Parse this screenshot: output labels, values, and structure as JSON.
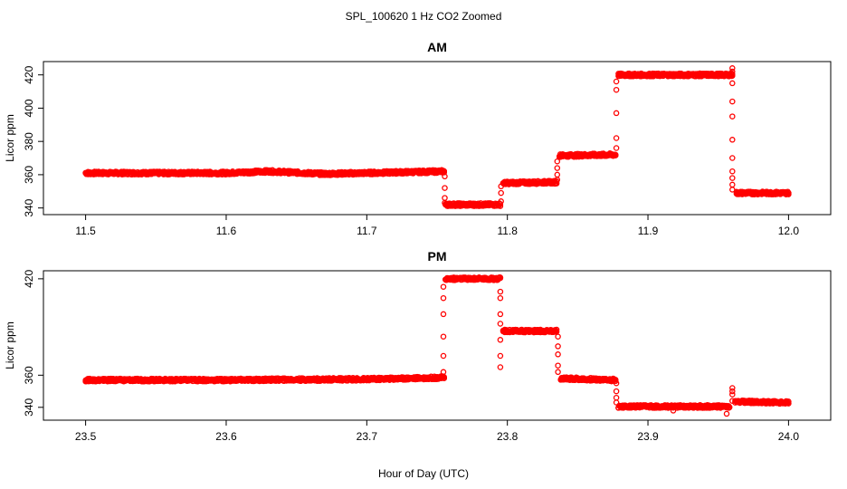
{
  "figure_title": "SPL_100620  1 Hz CO2 Zoomed",
  "xlabel": "Hour of Day (UTC)",
  "colors": {
    "points": "#ff0000",
    "axes": "#000000",
    "background": "#ffffff"
  },
  "chart_data": [
    {
      "type": "scatter",
      "title": "AM",
      "ylabel": "Licor ppm",
      "xlim": [
        11.47,
        12.03
      ],
      "ylim": [
        336,
        428
      ],
      "x_ticks": [
        "11.5",
        "11.6",
        "11.7",
        "11.8",
        "11.9",
        "12.0"
      ],
      "y_ticks": [
        "340",
        "360",
        "380",
        "400",
        "420"
      ],
      "grid": false,
      "legend": "none",
      "segments": [
        {
          "x_start": 11.5,
          "x_end": 11.6,
          "y_start": 361,
          "y_end": 361
        },
        {
          "x_start": 11.6,
          "x_end": 11.63,
          "y_start": 361,
          "y_end": 362
        },
        {
          "x_start": 11.63,
          "x_end": 11.67,
          "y_start": 362,
          "y_end": 360.5
        },
        {
          "x_start": 11.67,
          "x_end": 11.755,
          "y_start": 360.5,
          "y_end": 362
        },
        {
          "x_start": 11.756,
          "x_end": 11.795,
          "y_start": 342,
          "y_end": 342
        },
        {
          "x_start": 11.797,
          "x_end": 11.835,
          "y_start": 355,
          "y_end": 355.5
        },
        {
          "x_start": 11.837,
          "x_end": 11.877,
          "y_start": 371.5,
          "y_end": 372
        },
        {
          "x_start": 11.879,
          "x_end": 11.96,
          "y_start": 420,
          "y_end": 420
        },
        {
          "x_start": 11.963,
          "x_end": 12.0,
          "y_start": 349,
          "y_end": 349
        }
      ],
      "transitions": [
        {
          "x": 11.7555,
          "y": [
            359,
            352,
            346,
            343
          ]
        },
        {
          "x": 11.7955,
          "y": [
            344,
            349,
            353
          ]
        },
        {
          "x": 11.8355,
          "y": [
            357,
            360,
            364,
            368
          ]
        },
        {
          "x": 11.8775,
          "y": [
            376,
            382,
            397,
            411,
            416
          ]
        },
        {
          "x": 11.96,
          "y": [
            424,
            422,
            415,
            404,
            395,
            381,
            370,
            362,
            358,
            354,
            351
          ]
        }
      ]
    },
    {
      "type": "scatter",
      "title": "PM",
      "ylabel": "Licor ppm",
      "xlim": [
        23.47,
        24.03
      ],
      "ylim": [
        332,
        425
      ],
      "x_ticks": [
        "23.5",
        "23.6",
        "23.7",
        "23.8",
        "23.9",
        "24.0"
      ],
      "y_ticks": [
        "340",
        "360",
        "420"
      ],
      "grid": false,
      "legend": "none",
      "segments": [
        {
          "x_start": 23.5,
          "x_end": 23.6,
          "y_start": 357,
          "y_end": 357
        },
        {
          "x_start": 23.6,
          "x_end": 23.7,
          "y_start": 357,
          "y_end": 357.5
        },
        {
          "x_start": 23.7,
          "x_end": 23.755,
          "y_start": 357.5,
          "y_end": 358.5
        },
        {
          "x_start": 23.756,
          "x_end": 23.795,
          "y_start": 420,
          "y_end": 420
        },
        {
          "x_start": 23.797,
          "x_end": 23.835,
          "y_start": 387.5,
          "y_end": 387.5
        },
        {
          "x_start": 23.838,
          "x_end": 23.877,
          "y_start": 358,
          "y_end": 357
        },
        {
          "x_start": 23.879,
          "x_end": 23.958,
          "y_start": 340.5,
          "y_end": 340.5
        },
        {
          "x_start": 23.962,
          "x_end": 24.0,
          "y_start": 343.5,
          "y_end": 343
        }
      ],
      "transitions": [
        {
          "x": 23.7545,
          "y": [
            362,
            372,
            384,
            398,
            408,
            415
          ]
        },
        {
          "x": 23.795,
          "y": [
            412,
            408,
            398,
            382,
            372,
            365,
            392
          ]
        },
        {
          "x": 23.836,
          "y": [
            384,
            378,
            373,
            366,
            362
          ]
        },
        {
          "x": 23.8775,
          "y": [
            355,
            350,
            346,
            343
          ]
        },
        {
          "x": 23.918,
          "y": [
            338
          ]
        },
        {
          "x": 23.956,
          "y": [
            336
          ]
        },
        {
          "x": 23.96,
          "y": [
            344,
            348,
            350,
            352
          ]
        }
      ]
    }
  ]
}
